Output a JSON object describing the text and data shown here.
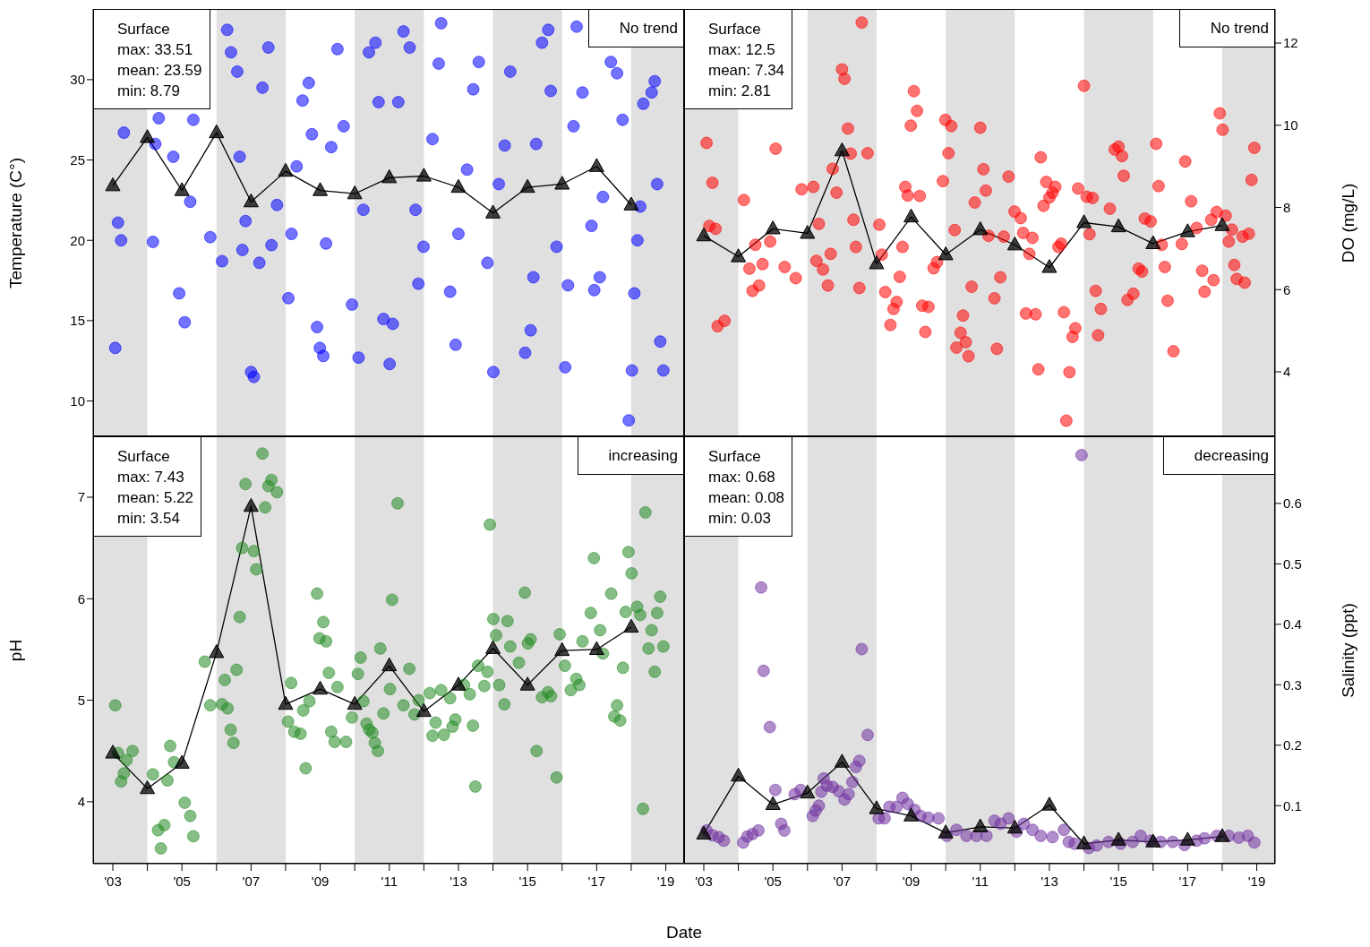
{
  "chart_data": [
    {
      "type": "scatter",
      "ylabel": "Temperature (C°)",
      "annotations": [
        "Surface",
        "max: 33.51",
        "mean: 23.59",
        "min: 8.79",
        "No trend"
      ],
      "xlim": [
        2002.43,
        2019.53
      ],
      "ylim": [
        7.8,
        34.4
      ],
      "yticks": [
        10,
        15,
        20,
        25,
        30
      ],
      "tick_labels": "y",
      "bands": [
        {
          "axis": "x",
          "from": 2002.43,
          "to": 2004,
          "color": "#e0e0e0"
        },
        {
          "axis": "x",
          "from": 2006,
          "to": 2008,
          "color": "#e0e0e0"
        },
        {
          "axis": "x",
          "from": 2010,
          "to": 2012,
          "color": "#e0e0e0"
        },
        {
          "axis": "x",
          "from": 2014,
          "to": 2016,
          "color": "#e0e0e0"
        },
        {
          "axis": "x",
          "from": 2018,
          "to": 2019.53,
          "color": "#e0e0e0"
        }
      ],
      "series": [
        {
          "marker": "circle",
          "color": "#0000ff",
          "x": [
            2003.07,
            2003.32,
            2003.15,
            2003.24,
            2004.23,
            2004.33,
            2004.75,
            2004.16,
            2004.92,
            2005.08,
            2005.24,
            2005.33,
            2005.82,
            2006.16,
            2006.31,
            2006.42,
            2006.6,
            2006.67,
            2006.84,
            2006.75,
            2007.0,
            2007.08,
            2007.24,
            2007.33,
            2007.5,
            2007.59,
            2007.75,
            2008.08,
            2008.17,
            2008.32,
            2008.49,
            2008.67,
            2008.76,
            2008.91,
            2008.99,
            2009.09,
            2009.17,
            2009.32,
            2009.5,
            2009.68,
            2009.92,
            2010.11,
            2010.25,
            2010.41,
            2010.6,
            2010.69,
            2010.83,
            2011.1,
            2011.01,
            2011.26,
            2011.41,
            2011.59,
            2011.76,
            2011.84,
            2011.99,
            2012.25,
            2012.5,
            2012.43,
            2012.76,
            2012.92,
            2013.0,
            2013.25,
            2013.43,
            2013.59,
            2013.84,
            2014.01,
            2014.17,
            2014.34,
            2014.5,
            2014.93,
            2015.17,
            2015.09,
            2015.25,
            2015.42,
            2015.6,
            2015.67,
            2015.84,
            2016.09,
            2016.17,
            2016.33,
            2016.42,
            2016.59,
            2016.85,
            2017.09,
            2016.93,
            2017.41,
            2017.59,
            2017.75,
            2017.93,
            2018.02,
            2018.09,
            2018.18,
            2018.35,
            2018.59,
            2018.68,
            2018.75,
            2018.84,
            2018.93,
            2017.18,
            2018.26
          ],
          "values": [
            13.3,
            26.7,
            21.1,
            20.0,
            26.0,
            27.6,
            25.2,
            19.9,
            16.7,
            14.9,
            22.4,
            27.5,
            20.2,
            18.7,
            33.1,
            31.7,
            30.5,
            25.2,
            21.2,
            19.4,
            11.8,
            11.5,
            18.6,
            29.5,
            32.0,
            19.7,
            22.2,
            16.4,
            20.4,
            24.6,
            28.7,
            29.8,
            26.6,
            14.6,
            13.3,
            12.8,
            19.8,
            25.8,
            31.9,
            27.1,
            16.0,
            12.7,
            21.9,
            31.7,
            32.3,
            28.6,
            15.1,
            14.8,
            12.3,
            28.6,
            33.0,
            32.0,
            21.9,
            17.3,
            19.6,
            26.3,
            33.51,
            31.0,
            16.8,
            13.5,
            20.4,
            24.4,
            29.4,
            31.1,
            18.6,
            11.8,
            23.5,
            25.9,
            30.5,
            13.0,
            17.7,
            14.4,
            26.0,
            32.3,
            33.1,
            29.3,
            19.6,
            12.1,
            17.2,
            27.1,
            33.3,
            29.2,
            20.9,
            17.7,
            16.9,
            31.1,
            30.4,
            27.5,
            8.79,
            11.9,
            16.7,
            20.0,
            28.5,
            29.2,
            29.9,
            23.5,
            13.7,
            11.9,
            22.7,
            22.1
          ]
        },
        {
          "type": "line",
          "marker": "triangle",
          "color": "#000000",
          "x": [
            2003,
            2004,
            2005,
            2006,
            2007,
            2008,
            2009,
            2010,
            2011,
            2012,
            2013,
            2014,
            2015,
            2016,
            2017,
            2018
          ],
          "values": [
            23.4,
            26.4,
            23.1,
            26.7,
            22.4,
            24.3,
            23.1,
            22.9,
            23.9,
            24.0,
            23.3,
            21.7,
            23.3,
            23.5,
            24.6,
            22.2
          ]
        }
      ]
    },
    {
      "type": "scatter",
      "y2label": "DO (mg/L)",
      "annotations": [
        "Surface",
        "max: 12.5",
        "mean: 7.34",
        "min: 2.81",
        "No trend"
      ],
      "xlim": [
        2002.43,
        2019.53
      ],
      "y2lim": [
        2.43,
        12.83
      ],
      "y2ticks": [
        4,
        6,
        8,
        10,
        12
      ],
      "tick_labels": "y",
      "bands": [
        {
          "axis": "x",
          "from": 2002.43,
          "to": 2004,
          "color": "#e0e0e0"
        },
        {
          "axis": "x",
          "from": 2006,
          "to": 2008,
          "color": "#e0e0e0"
        },
        {
          "axis": "x",
          "from": 2010,
          "to": 2012,
          "color": "#e0e0e0"
        },
        {
          "axis": "x",
          "from": 2014,
          "to": 2016,
          "color": "#e0e0e0"
        },
        {
          "axis": "x",
          "from": 2018,
          "to": 2019.53,
          "color": "#e0e0e0"
        }
      ],
      "series": [
        {
          "axis": "y2",
          "marker": "circle",
          "color": "#ff0000",
          "x": [
            2003.08,
            2003.25,
            2003.16,
            2003.34,
            2003.4,
            2003.6,
            2004.16,
            2004.49,
            2004.32,
            2004.41,
            2004.6,
            2004.7,
            2004.92,
            2005.08,
            2005.34,
            2005.66,
            2005.83,
            2006.17,
            2006.33,
            2006.26,
            2006.45,
            2006.59,
            2006.67,
            2006.73,
            2006.84,
            2007.0,
            2007.07,
            2007.17,
            2007.25,
            2007.33,
            2007.4,
            2007.5,
            2007.57,
            2007.74,
            2008.08,
            2008.15,
            2008.25,
            2008.58,
            2008.49,
            2008.4,
            2008.67,
            2008.75,
            2008.83,
            2008.9,
            2008.99,
            2009.08,
            2009.17,
            2009.25,
            2009.32,
            2009.41,
            2009.5,
            2009.65,
            2009.75,
            2009.92,
            2009.99,
            2010.08,
            2010.16,
            2010.26,
            2010.31,
            2010.43,
            2010.5,
            2010.58,
            2010.66,
            2010.75,
            2010.84,
            2011.0,
            2011.09,
            2011.16,
            2011.24,
            2011.41,
            2011.48,
            2011.58,
            2011.68,
            2011.82,
            2011.99,
            2012.17,
            2012.24,
            2012.32,
            2012.42,
            2012.51,
            2012.6,
            2012.68,
            2012.75,
            2012.83,
            2012.91,
            2013.0,
            2013.09,
            2013.17,
            2013.26,
            2013.34,
            2013.42,
            2013.49,
            2013.58,
            2013.67,
            2013.75,
            2013.83,
            2014.0,
            2014.08,
            2014.16,
            2014.25,
            2014.34,
            2014.41,
            2014.49,
            2014.75,
            2014.89,
            2015.0,
            2015.1,
            2015.15,
            2015.26,
            2015.43,
            2015.58,
            2015.68,
            2015.76,
            2015.93,
            2016.09,
            2016.16,
            2016.25,
            2016.34,
            2016.42,
            2016.59,
            2016.83,
            2016.93,
            2017.1,
            2017.26,
            2017.42,
            2017.49,
            2017.75,
            2017.68,
            2017.84,
            2017.93,
            2018.01,
            2018.1,
            2018.19,
            2018.28,
            2018.35,
            2018.42,
            2018.65,
            2018.59,
            2018.77,
            2018.85,
            2018.93
          ],
          "values": [
            9.57,
            8.6,
            7.55,
            7.48,
            5.11,
            5.24,
            8.18,
            7.09,
            6.51,
            5.97,
            6.1,
            6.62,
            7.17,
            9.43,
            6.55,
            6.28,
            8.44,
            8.5,
            7.6,
            6.7,
            6.49,
            6.1,
            6.87,
            8.94,
            8.36,
            11.36,
            11.13,
            9.92,
            9.31,
            7.7,
            7.04,
            6.04,
            12.5,
            9.32,
            7.58,
            6.85,
            5.94,
            5.7,
            5.53,
            5.14,
            6.31,
            7.04,
            8.5,
            8.29,
            9.99,
            10.83,
            10.35,
            8.28,
            5.61,
            4.97,
            5.58,
            6.52,
            6.67,
            8.64,
            10.13,
            9.32,
            9.98,
            7.45,
            4.59,
            4.95,
            5.37,
            4.72,
            4.38,
            6.07,
            8.12,
            9.94,
            8.93,
            8.41,
            7.31,
            5.79,
            4.56,
            6.3,
            7.29,
            8.75,
            7.9,
            7.74,
            7.38,
            5.42,
            6.87,
            7.26,
            5.4,
            4.06,
            9.22,
            8.04,
            8.62,
            8.24,
            8.36,
            8.5,
            7.04,
            7.12,
            5.45,
            2.81,
            3.99,
            4.85,
            5.06,
            8.46,
            10.96,
            8.26,
            7.35,
            8.23,
            5.97,
            4.89,
            5.53,
            7.97,
            9.41,
            9.48,
            9.25,
            8.77,
            5.75,
            5.9,
            6.51,
            6.44,
            7.73,
            7.66,
            9.55,
            8.52,
            7.09,
            6.55,
            5.73,
            4.5,
            7.11,
            9.12,
            8.15,
            7.5,
            6.46,
            5.95,
            6.23,
            7.7,
            7.89,
            10.29,
            9.89,
            7.8,
            7.17,
            7.46,
            6.6,
            6.26,
            6.17,
            7.29,
            7.36,
            8.67,
            9.45
          ]
        },
        {
          "type": "line",
          "axis": "y2",
          "marker": "triangle",
          "color": "#000000",
          "x": [
            2003,
            2004,
            2005,
            2006,
            2007,
            2008,
            2009,
            2010,
            2011,
            2012,
            2013,
            2014,
            2015,
            2016,
            2017,
            2018
          ],
          "values": [
            7.31,
            6.8,
            7.48,
            7.37,
            9.38,
            6.63,
            7.77,
            6.85,
            7.46,
            7.09,
            6.54,
            7.63,
            7.53,
            7.12,
            7.41,
            7.56
          ]
        }
      ]
    },
    {
      "type": "scatter",
      "ylabel": "pH",
      "xlabel": "Date",
      "annotations": [
        "Surface",
        "max: 7.43",
        "mean: 5.22",
        "min: 3.54",
        "increasing"
      ],
      "xlim": [
        2002.43,
        2019.53
      ],
      "xticks": [
        {
          "value": 2003,
          "label": "'03"
        },
        {
          "value": 2004,
          "label": null
        },
        {
          "value": 2005,
          "label": "'05"
        },
        {
          "value": 2006,
          "label": null
        },
        {
          "value": 2007,
          "label": "'07"
        },
        {
          "value": 2008,
          "label": null
        },
        {
          "value": 2009,
          "label": "'09"
        },
        {
          "value": 2010,
          "label": null
        },
        {
          "value": 2011,
          "label": "'11"
        },
        {
          "value": 2012,
          "label": null
        },
        {
          "value": 2013,
          "label": "'13"
        },
        {
          "value": 2014,
          "label": null
        },
        {
          "value": 2015,
          "label": "'15"
        },
        {
          "value": 2016,
          "label": null
        },
        {
          "value": 2017,
          "label": "'17"
        },
        {
          "value": 2018,
          "label": null
        },
        {
          "value": 2019,
          "label": "'19"
        }
      ],
      "ylim": [
        3.39,
        7.6
      ],
      "yticks": [
        4,
        5,
        6,
        7
      ],
      "bands": [
        {
          "axis": "x",
          "from": 2002.43,
          "to": 2004,
          "color": "#e0e0e0"
        },
        {
          "axis": "x",
          "from": 2006,
          "to": 2008,
          "color": "#e0e0e0"
        },
        {
          "axis": "x",
          "from": 2010,
          "to": 2012,
          "color": "#e0e0e0"
        },
        {
          "axis": "x",
          "from": 2014,
          "to": 2016,
          "color": "#e0e0e0"
        },
        {
          "axis": "x",
          "from": 2018,
          "to": 2019.53,
          "color": "#e0e0e0"
        }
      ],
      "series": [
        {
          "marker": "circle",
          "color": "#228b22",
          "x": [
            2003.07,
            2003.15,
            2003.24,
            2003.4,
            2003.57,
            2003.32,
            2004.16,
            2004.31,
            2004.49,
            2004.39,
            2004.58,
            2004.66,
            2004.77,
            2005.08,
            2005.24,
            2005.33,
            2005.66,
            2005.82,
            2006.16,
            2006.24,
            2006.32,
            2006.41,
            2006.49,
            2006.58,
            2006.67,
            2006.74,
            2006.84,
            2007.08,
            2007.15,
            2007.33,
            2007.41,
            2007.5,
            2007.59,
            2007.75,
            2008.07,
            2008.16,
            2008.25,
            2008.43,
            2008.51,
            2008.58,
            2008.69,
            2008.91,
            2009.09,
            2008.98,
            2009.17,
            2009.25,
            2009.32,
            2009.42,
            2009.5,
            2009.75,
            2009.92,
            2010.09,
            2010.17,
            2010.25,
            2010.34,
            2010.42,
            2010.51,
            2010.58,
            2010.67,
            2010.74,
            2010.83,
            2011.08,
            2011.02,
            2011.24,
            2011.41,
            2011.58,
            2011.73,
            2011.85,
            2012.17,
            2012.25,
            2012.34,
            2012.5,
            2012.58,
            2012.76,
            2012.83,
            2012.91,
            2013.16,
            2013.33,
            2013.42,
            2013.49,
            2013.57,
            2013.75,
            2013.84,
            2013.91,
            2014.01,
            2014.09,
            2014.18,
            2014.33,
            2014.42,
            2014.5,
            2014.75,
            2014.92,
            2015.01,
            2015.09,
            2015.26,
            2015.42,
            2015.59,
            2015.68,
            2015.84,
            2015.93,
            2016.08,
            2016.25,
            2016.41,
            2016.5,
            2016.59,
            2016.83,
            2016.92,
            2017.1,
            2017.18,
            2017.42,
            2017.51,
            2017.59,
            2017.68,
            2017.76,
            2017.84,
            2017.92,
            2018.01,
            2018.17,
            2018.26,
            2018.34,
            2018.41,
            2018.5,
            2018.59,
            2018.68,
            2018.75,
            2018.84,
            2018.93
          ],
          "values": [
            4.95,
            4.48,
            4.2,
            4.41,
            4.5,
            4.28,
            4.27,
            3.72,
            3.77,
            3.54,
            4.21,
            4.55,
            4.39,
            3.99,
            3.86,
            3.66,
            5.38,
            4.95,
            4.96,
            5.2,
            4.92,
            4.71,
            4.58,
            5.3,
            5.82,
            6.5,
            7.13,
            6.47,
            6.29,
            7.43,
            6.9,
            7.11,
            7.17,
            7.05,
            4.79,
            5.17,
            4.69,
            4.67,
            4.9,
            4.33,
            4.99,
            6.05,
            5.77,
            5.61,
            5.58,
            5.27,
            4.69,
            4.59,
            5.13,
            4.59,
            4.83,
            5.26,
            5.42,
            4.99,
            4.77,
            4.71,
            4.68,
            4.58,
            4.5,
            5.51,
            4.87,
            5.99,
            5.11,
            6.94,
            4.95,
            5.31,
            4.86,
            5.0,
            5.07,
            4.65,
            4.78,
            5.1,
            4.66,
            5.02,
            4.74,
            4.81,
            5.15,
            5.06,
            4.75,
            4.15,
            5.34,
            5.14,
            5.28,
            6.73,
            5.8,
            5.64,
            5.15,
            4.96,
            5.78,
            5.53,
            5.37,
            6.06,
            5.56,
            5.6,
            4.5,
            5.03,
            5.08,
            5.04,
            4.24,
            5.65,
            5.34,
            5.1,
            5.21,
            5.15,
            5.58,
            5.86,
            6.4,
            5.69,
            5.46,
            6.05,
            4.84,
            4.95,
            4.8,
            5.32,
            5.87,
            6.46,
            6.25,
            5.92,
            5.84,
            3.93,
            6.85,
            5.51,
            5.69,
            5.28,
            5.86,
            6.02,
            5.53
          ]
        },
        {
          "type": "line",
          "marker": "triangle",
          "color": "#000000",
          "x": [
            2003,
            2004,
            2005,
            2006,
            2007,
            2008,
            2009,
            2010,
            2011,
            2012,
            2013,
            2014,
            2015,
            2016,
            2017,
            2018
          ],
          "values": [
            4.48,
            4.13,
            4.38,
            5.47,
            6.91,
            4.96,
            5.11,
            4.96,
            5.34,
            4.89,
            5.15,
            5.51,
            5.15,
            5.49,
            5.5,
            5.72
          ]
        }
      ]
    },
    {
      "type": "scatter",
      "y2label": "Salinity (ppt)",
      "annotations": [
        "Surface",
        "max: 0.68",
        "mean: 0.08",
        "min: 0.03",
        "decreasing"
      ],
      "xlim": [
        2002.43,
        2019.53
      ],
      "xticks": [
        {
          "value": 2003,
          "label": "'03"
        },
        {
          "value": 2004,
          "label": null
        },
        {
          "value": 2005,
          "label": "'05"
        },
        {
          "value": 2006,
          "label": null
        },
        {
          "value": 2007,
          "label": "'07"
        },
        {
          "value": 2008,
          "label": null
        },
        {
          "value": 2009,
          "label": "'09"
        },
        {
          "value": 2010,
          "label": null
        },
        {
          "value": 2011,
          "label": "'11"
        },
        {
          "value": 2012,
          "label": null
        },
        {
          "value": 2013,
          "label": "'13"
        },
        {
          "value": 2014,
          "label": null
        },
        {
          "value": 2015,
          "label": "'15"
        },
        {
          "value": 2016,
          "label": null
        },
        {
          "value": 2017,
          "label": "'17"
        },
        {
          "value": 2018,
          "label": null
        },
        {
          "value": 2019,
          "label": "'19"
        }
      ],
      "y2lim": [
        0.004,
        0.711
      ],
      "y2ticks": [
        0.1,
        0.2,
        0.3,
        0.4,
        0.5,
        0.6
      ],
      "bands": [
        {
          "axis": "x",
          "from": 2002.43,
          "to": 2004,
          "color": "#e0e0e0"
        },
        {
          "axis": "x",
          "from": 2006,
          "to": 2008,
          "color": "#e0e0e0"
        },
        {
          "axis": "x",
          "from": 2010,
          "to": 2012,
          "color": "#e0e0e0"
        },
        {
          "axis": "x",
          "from": 2014,
          "to": 2016,
          "color": "#e0e0e0"
        },
        {
          "axis": "x",
          "from": 2018,
          "to": 2019.53,
          "color": "#e0e0e0"
        }
      ],
      "series": [
        {
          "axis": "y2",
          "marker": "circle",
          "color": "#7030a0",
          "x": [
            2003.08,
            2003.25,
            2003.43,
            2003.58,
            2004.14,
            2004.26,
            2004.41,
            2004.58,
            2004.66,
            2004.73,
            2004.91,
            2005.07,
            2005.24,
            2005.33,
            2005.63,
            2005.8,
            2006.15,
            2006.24,
            2006.33,
            2006.4,
            2006.47,
            2006.56,
            2006.73,
            2006.9,
            2007.07,
            2007.19,
            2007.3,
            2007.4,
            2007.5,
            2007.57,
            2007.74,
            2008.06,
            2008.23,
            2008.37,
            2008.58,
            2008.75,
            2008.9,
            2009.1,
            2009.27,
            2009.5,
            2009.79,
            2010.03,
            2010.31,
            2010.6,
            2010.89,
            2011.18,
            2011.41,
            2011.59,
            2011.82,
            2012.05,
            2012.26,
            2012.51,
            2012.75,
            2013.09,
            2013.42,
            2013.56,
            2013.73,
            2013.93,
            2014.14,
            2014.37,
            2014.71,
            2015.06,
            2015.41,
            2015.64,
            2015.93,
            2016.22,
            2016.57,
            2016.91,
            2017.26,
            2017.49,
            2017.84,
            2018.19,
            2018.48,
            2018.74,
            2018.93
          ],
          "values": [
            0.059,
            0.051,
            0.048,
            0.042,
            0.039,
            0.049,
            0.053,
            0.059,
            0.461,
            0.323,
            0.23,
            0.126,
            0.07,
            0.059,
            0.119,
            0.126,
            0.083,
            0.092,
            0.1,
            0.123,
            0.145,
            0.133,
            0.131,
            0.124,
            0.11,
            0.119,
            0.139,
            0.164,
            0.174,
            0.359,
            0.217,
            0.079,
            0.079,
            0.098,
            0.098,
            0.113,
            0.103,
            0.093,
            0.083,
            0.08,
            0.079,
            0.05,
            0.06,
            0.05,
            0.05,
            0.05,
            0.075,
            0.07,
            0.079,
            0.057,
            0.07,
            0.06,
            0.05,
            0.048,
            0.06,
            0.04,
            0.037,
            0.68,
            0.03,
            0.034,
            0.04,
            0.037,
            0.04,
            0.05,
            0.042,
            0.04,
            0.04,
            0.035,
            0.042,
            0.046,
            0.05,
            0.05,
            0.047,
            0.05,
            0.039
          ]
        },
        {
          "type": "line",
          "axis": "y2",
          "marker": "triangle",
          "color": "#000000",
          "x": [
            2003,
            2004,
            2005,
            2006,
            2007,
            2008,
            2009,
            2010,
            2011,
            2012,
            2013,
            2014,
            2015,
            2016,
            2017,
            2018
          ],
          "values": [
            0.053,
            0.149,
            0.102,
            0.121,
            0.172,
            0.095,
            0.083,
            0.055,
            0.065,
            0.063,
            0.101,
            0.037,
            0.043,
            0.04,
            0.043,
            0.049
          ]
        }
      ]
    }
  ]
}
